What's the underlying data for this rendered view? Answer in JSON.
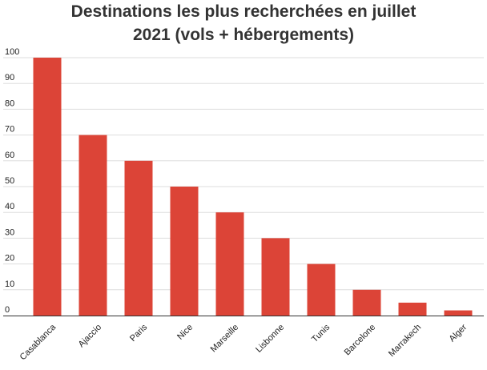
{
  "title_line1": "Destinations les plus recherchées en juillet",
  "title_line2": "2021 (vols + hébergements)",
  "chart_data": {
    "type": "bar",
    "title": "Destinations les plus recherchées en juillet 2021 (vols + hébergements)",
    "categories": [
      "Casablanca",
      "Ajaccio",
      "Paris",
      "Nice",
      "Marseille",
      "Lisbonne",
      "Tunis",
      "Barcelone",
      "Marrakech",
      "Alger"
    ],
    "values": [
      100,
      70,
      60,
      50,
      40,
      30,
      20,
      10,
      5,
      2
    ],
    "xlabel": "",
    "ylabel": "",
    "ylim": [
      0,
      100
    ],
    "yticks": [
      0,
      10,
      20,
      30,
      40,
      50,
      60,
      70,
      80,
      90,
      100
    ],
    "grid": true,
    "legend": "none",
    "bar_color": "#dc4437"
  }
}
